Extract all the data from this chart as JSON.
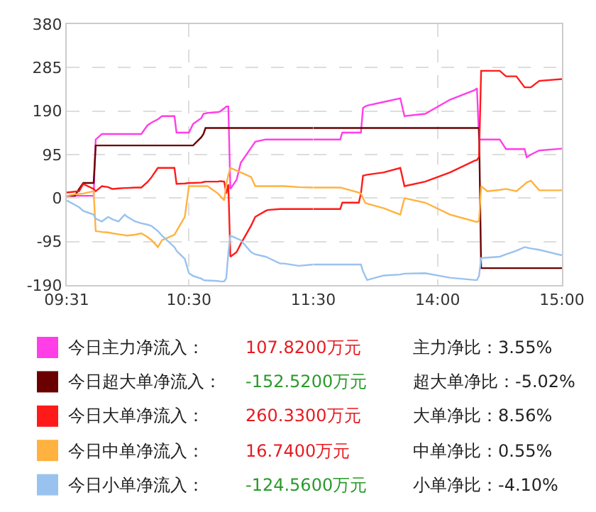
{
  "chart_data": [
    {
      "type": "line",
      "x": [
        9.5167,
        9.5833,
        9.6167,
        9.65,
        9.7333,
        9.75,
        9.8,
        9.85,
        9.8833,
        9.9333,
        9.9833,
        10,
        10.0667,
        10.1167,
        10.1667,
        10.2,
        10.25,
        10.2833,
        10.3833,
        10.4,
        10.4667,
        10.5,
        10.5333,
        10.6,
        10.6167,
        10.6333,
        10.65,
        10.7333,
        10.75,
        10.7833,
        10.8,
        10.8167,
        10.8333,
        10.8833,
        10.9167,
        11,
        11.0333,
        11.1167,
        11.1333,
        11.2333,
        11.2667,
        11.3833,
        11.5
      ],
      "series": [
        {
          "name": "今日主力净流入：",
          "color": "#ff3ee8",
          "values": [
            5,
            5,
            5,
            5,
            5,
            128,
            140,
            140,
            140,
            140,
            140,
            140,
            140,
            140,
            159,
            165,
            172,
            179,
            179,
            143,
            143,
            143,
            162,
            175,
            184,
            185,
            186,
            188,
            189,
            196,
            200,
            200,
            20,
            40,
            77,
            110,
            123,
            128,
            128,
            128,
            128,
            128,
            128
          ]
        },
        {
          "name": "今日超大单净流入：",
          "color": "#6b0000",
          "values": [
            5,
            5,
            20,
            33,
            33,
            115,
            115,
            115,
            115,
            115,
            115,
            115,
            115,
            115,
            115,
            115,
            115,
            115,
            115,
            115,
            115,
            115,
            115,
            133,
            140,
            153,
            153,
            153,
            153,
            153,
            153,
            153,
            153,
            153,
            153,
            153,
            153,
            153,
            153,
            153,
            153,
            153,
            153
          ]
        },
        {
          "name": "今日大单净流入：",
          "color": "#ff1a1a",
          "values": [
            12,
            14,
            15,
            31,
            20,
            15,
            26,
            24,
            20,
            21,
            22,
            22,
            23,
            23,
            35,
            46,
            66,
            66,
            66,
            31,
            32,
            33,
            33,
            34,
            35,
            36,
            36,
            36,
            37,
            36,
            10,
            30,
            -128,
            -118,
            -100,
            -60,
            -41,
            -28,
            -26,
            -24,
            -24,
            -24,
            -24
          ]
        },
        {
          "name": "今日中单净流入：",
          "color": "#ffb23f",
          "values": [
            5,
            8,
            9,
            10,
            15,
            -72,
            -74,
            -75,
            -77,
            -79,
            -81,
            -82,
            -80,
            -77,
            -85,
            -92,
            -107,
            -92,
            -80,
            -72,
            -41,
            26,
            26,
            26,
            26,
            26,
            26,
            10,
            5,
            -5,
            30,
            50,
            66,
            60,
            56,
            46,
            26,
            26,
            26,
            26,
            26,
            24,
            23
          ]
        },
        {
          "name": "今日小单净流入：",
          "color": "#99c2ee",
          "values": [
            -5,
            -15,
            -20,
            -28,
            -36,
            -45,
            -51,
            -41,
            -46,
            -51,
            -36,
            -40,
            -51,
            -55,
            -58,
            -61,
            -72,
            -82,
            -107,
            -115,
            -133,
            -164,
            -170,
            -176,
            -179,
            -180,
            -180,
            -181,
            -182,
            -182,
            -175,
            -120,
            -82,
            -88,
            -92,
            -118,
            -123,
            -128,
            -130,
            -143,
            -143,
            -148,
            -145
          ]
        }
      ],
      "xlim": [
        9.5167,
        11.5
      ],
      "xticks": [
        {
          "value": 9.5167,
          "label": "09:31"
        },
        {
          "value": 10.5,
          "label": "10:30"
        },
        {
          "value": 11.5,
          "label": "11:30"
        }
      ],
      "ylim": [
        -190,
        380
      ],
      "yticks": [
        -190,
        -95,
        0,
        95,
        190,
        285,
        380
      ],
      "grid": true,
      "legend": "bottom",
      "marker": "none",
      "line_style": "solid",
      "annotations": [
        "107.8200万元",
        "主力净比：3.55%",
        "-152.5200万元",
        "超大单净比：-5.02%",
        "260.3300万元",
        "大单净比：8.56%",
        "16.7400万元",
        "中单净比：0.55%",
        "-124.5600万元",
        "小单净比：-4.10%"
      ]
    },
    {
      "type": "line",
      "x": [
        13,
        13.2167,
        13.2333,
        13.3667,
        13.3833,
        13.4,
        13.4167,
        13.4333,
        13.5667,
        13.7,
        13.7333,
        13.9,
        14.1,
        14.3,
        14.3167,
        14.3333,
        14.35,
        14.4,
        14.5,
        14.55,
        14.6333,
        14.7,
        14.7167,
        14.75,
        14.8167,
        15
      ],
      "series": [
        {
          "color": "#ff3ee8",
          "values": [
            128,
            128,
            143,
            143,
            143,
            197,
            200,
            202,
            210,
            218,
            179,
            184,
            215,
            236,
            240,
            128,
            128,
            128,
            128,
            107,
            107,
            107,
            89,
            95,
            104,
            108
          ]
        },
        {
          "color": "#6b0000",
          "values": [
            153,
            153,
            153,
            153,
            153,
            153,
            153,
            153,
            153,
            153,
            153,
            153,
            153,
            153,
            153,
            153,
            -153,
            -153,
            -153,
            -153,
            -153,
            -153,
            -153,
            -153,
            -153,
            -153
          ]
        },
        {
          "color": "#ff1a1a",
          "values": [
            -24,
            -24,
            -10,
            -10,
            10,
            49,
            50,
            51,
            56,
            66,
            26,
            36,
            56,
            82,
            83,
            90,
            278,
            278,
            278,
            266,
            266,
            242,
            242,
            242,
            256,
            260
          ]
        },
        {
          "color": "#ffb23f",
          "values": [
            23,
            23,
            22,
            12,
            10,
            0,
            -10,
            -12,
            -22,
            -36,
            0,
            -10,
            -36,
            -51,
            -52,
            -50,
            26,
            15,
            18,
            20,
            15,
            30,
            34,
            38,
            17,
            17
          ]
        },
        {
          "color": "#99c2ee",
          "values": [
            -145,
            -145,
            -145,
            -145,
            -145,
            -160,
            -170,
            -179,
            -169,
            -167,
            -165,
            -164,
            -174,
            -179,
            -179,
            -170,
            -131,
            -130,
            -128,
            -123,
            -115,
            -107,
            -108,
            -110,
            -113,
            -125
          ]
        }
      ],
      "xlim": [
        13,
        15
      ],
      "xticks": [
        {
          "value": 14,
          "label": "14:00"
        },
        {
          "value": 15,
          "label": "15:00"
        }
      ],
      "ylim": [
        -190,
        380
      ],
      "yticks": [
        -190,
        -95,
        0,
        95,
        190,
        285,
        380
      ],
      "tick_labels": "x",
      "grid": true,
      "marker": "none",
      "line_style": "solid"
    }
  ]
}
